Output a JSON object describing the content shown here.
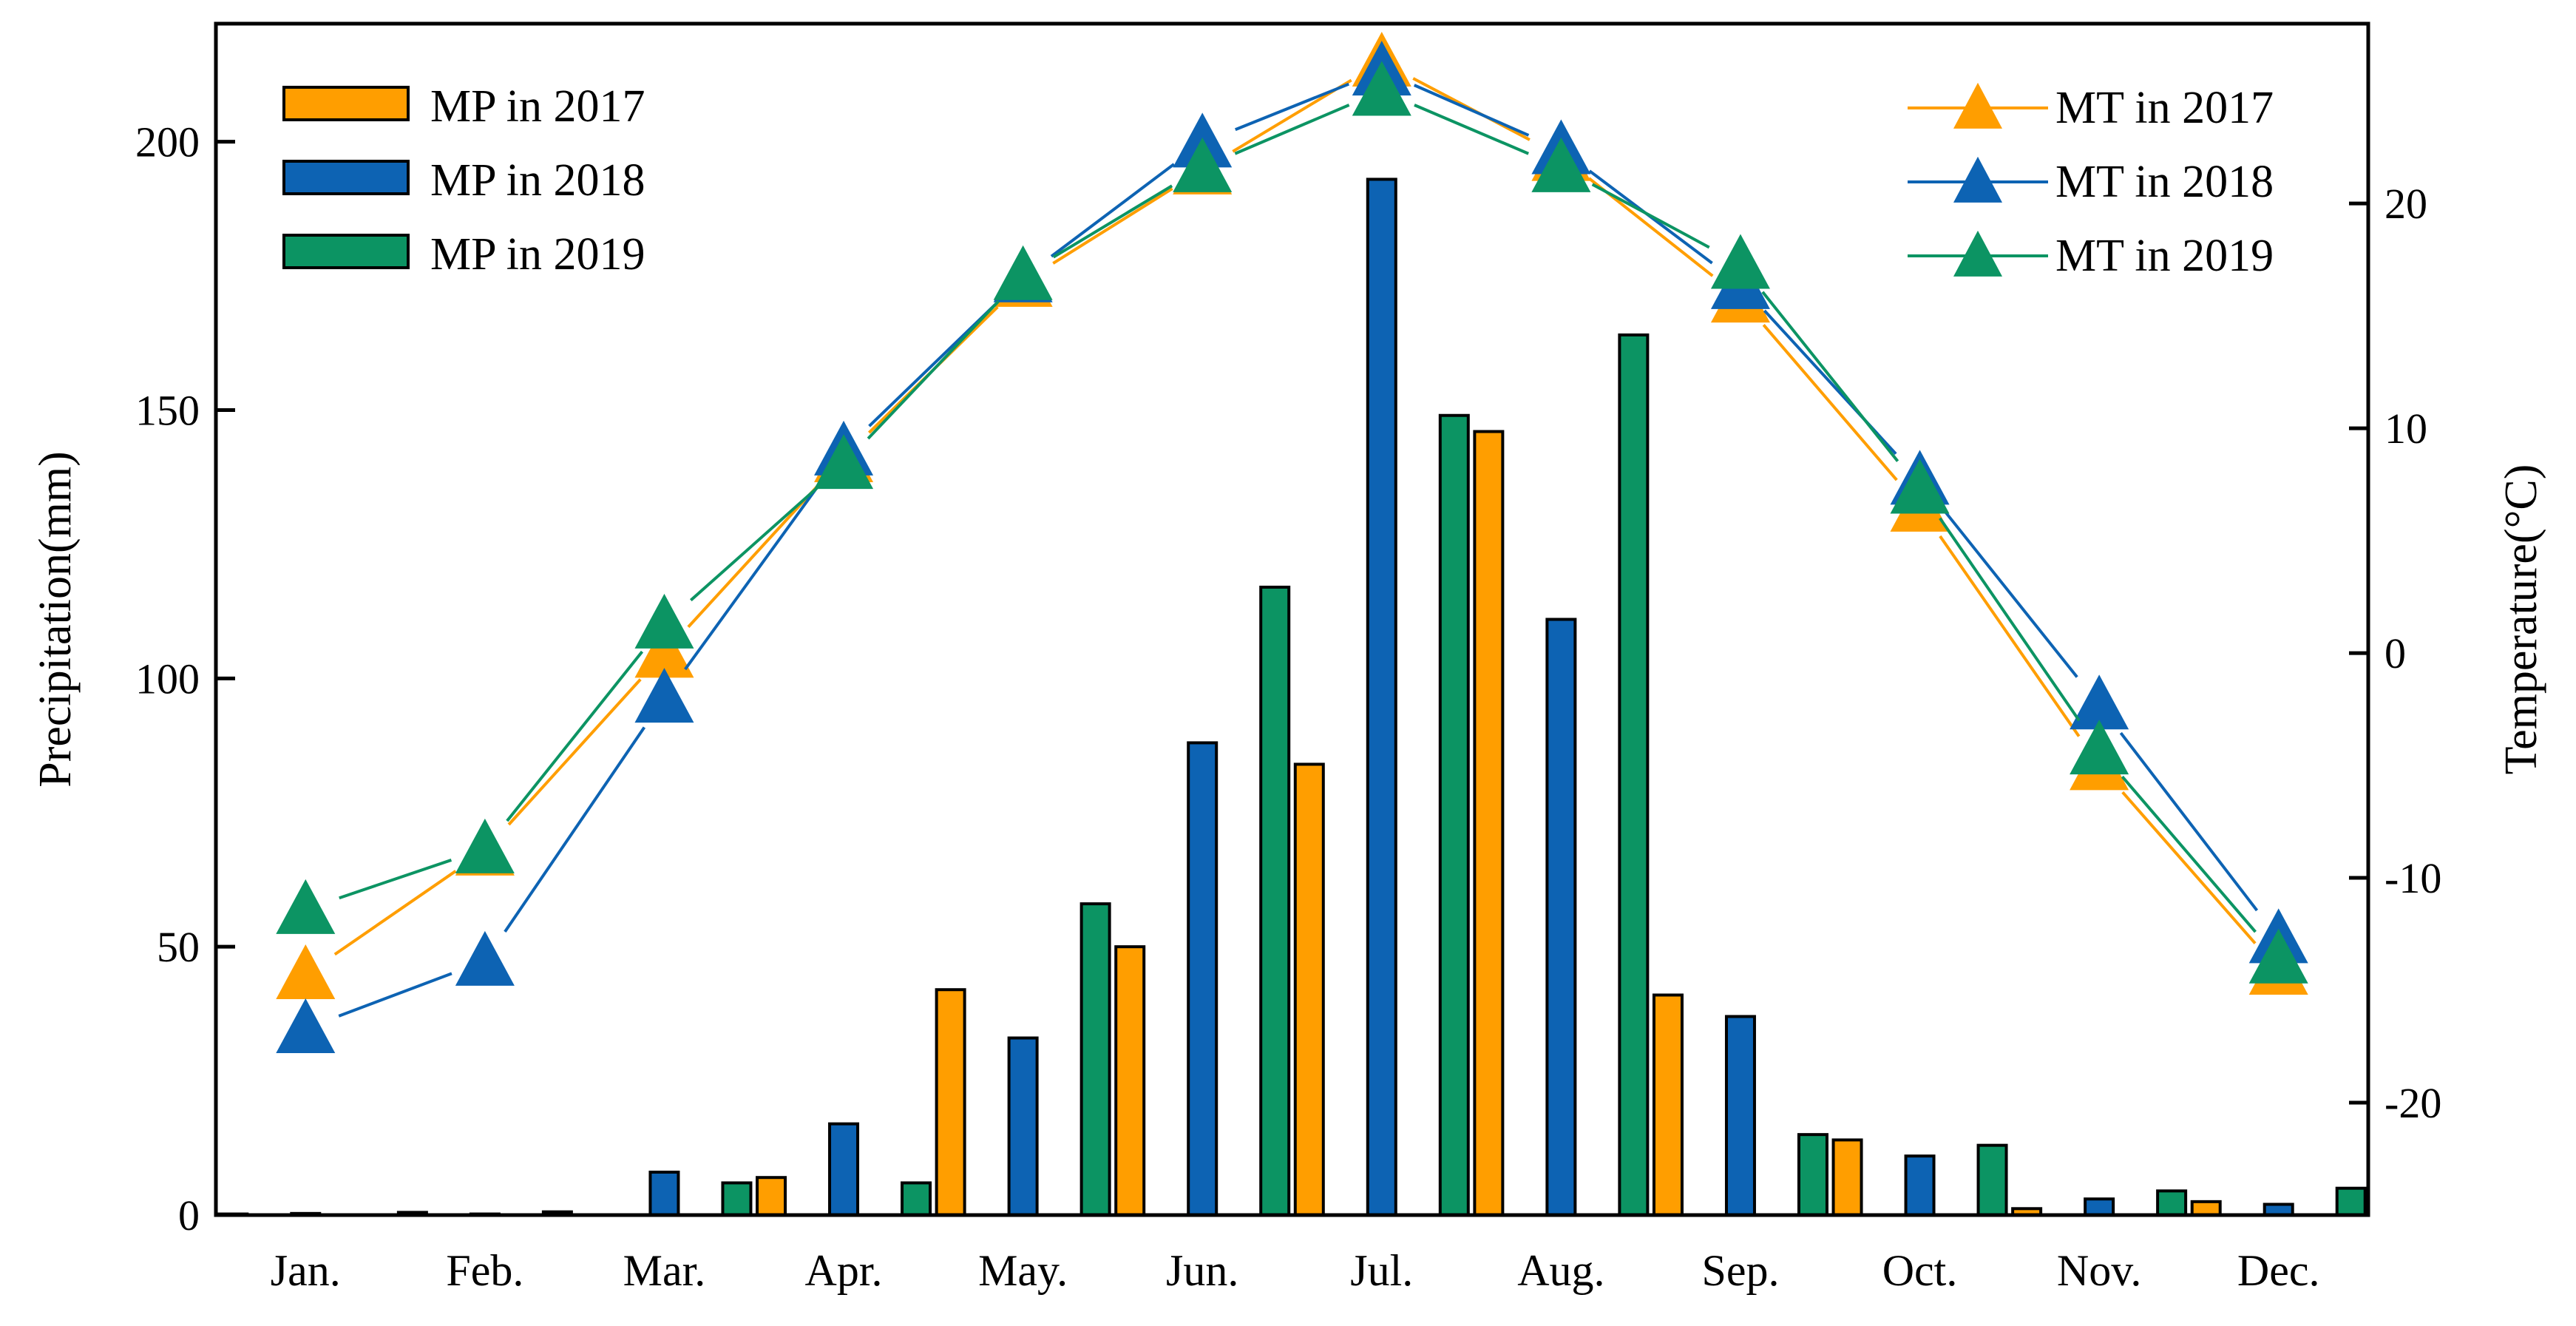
{
  "chart_data": {
    "type": "bar",
    "title": "",
    "categories": [
      "Jan.",
      "Feb.",
      "Mar.",
      "Apr.",
      "May.",
      "Jun.",
      "Jul.",
      "Aug.",
      "Sep.",
      "Oct.",
      "Nov.",
      "Dec."
    ],
    "ylabel_left": "Precipitation(mm)",
    "ylabel_right": "Temperature(°C)",
    "ylim_left": [
      0,
      222
    ],
    "ylim_right": [
      -25,
      28
    ],
    "yticks_left": [
      "0",
      "50",
      "100",
      "150",
      "200"
    ],
    "yticks_right": [
      "-20",
      "-10",
      "0",
      "10",
      "20"
    ],
    "bar_series": [
      {
        "name": "MP in 2017",
        "color": "#FF9E00",
        "values": [
          0.2,
          0.5,
          0,
          7,
          42,
          50,
          84,
          146,
          41,
          14,
          1.2,
          2.5
        ]
      },
      {
        "name": "MP in 2018",
        "color": "#0D63B3",
        "values": [
          0.3,
          0.2,
          8,
          17,
          33,
          88,
          193,
          111,
          37,
          11,
          3,
          2
        ]
      },
      {
        "name": "MP in 2019",
        "color": "#0C9463",
        "values": [
          0,
          0.6,
          6,
          6,
          58,
          117,
          149,
          164,
          15,
          13,
          4.5,
          5
        ]
      }
    ],
    "line_series": [
      {
        "name": "MT in 2017",
        "color": "#FF9E00",
        "values": [
          -14.3,
          -8.8,
          0,
          8.7,
          16.5,
          21.5,
          26.3,
          22.1,
          15.8,
          6.5,
          -5.0,
          -14.1
        ]
      },
      {
        "name": "MT in 2018",
        "color": "#0D63B3",
        "values": [
          -16.7,
          -13.7,
          -2.0,
          9.0,
          16.7,
          22.7,
          25.9,
          22.4,
          16.4,
          7.7,
          -2.3,
          -12.7
        ]
      },
      {
        "name": "MT in 2019",
        "color": "#0C9463",
        "values": [
          -11.4,
          -8.7,
          1.3,
          8.4,
          16.8,
          21.6,
          25.0,
          21.6,
          17.3,
          7.3,
          -4.3,
          -13.6
        ]
      }
    ],
    "legend_bars_position": "top-left",
    "legend_lines_position": "top-right"
  }
}
